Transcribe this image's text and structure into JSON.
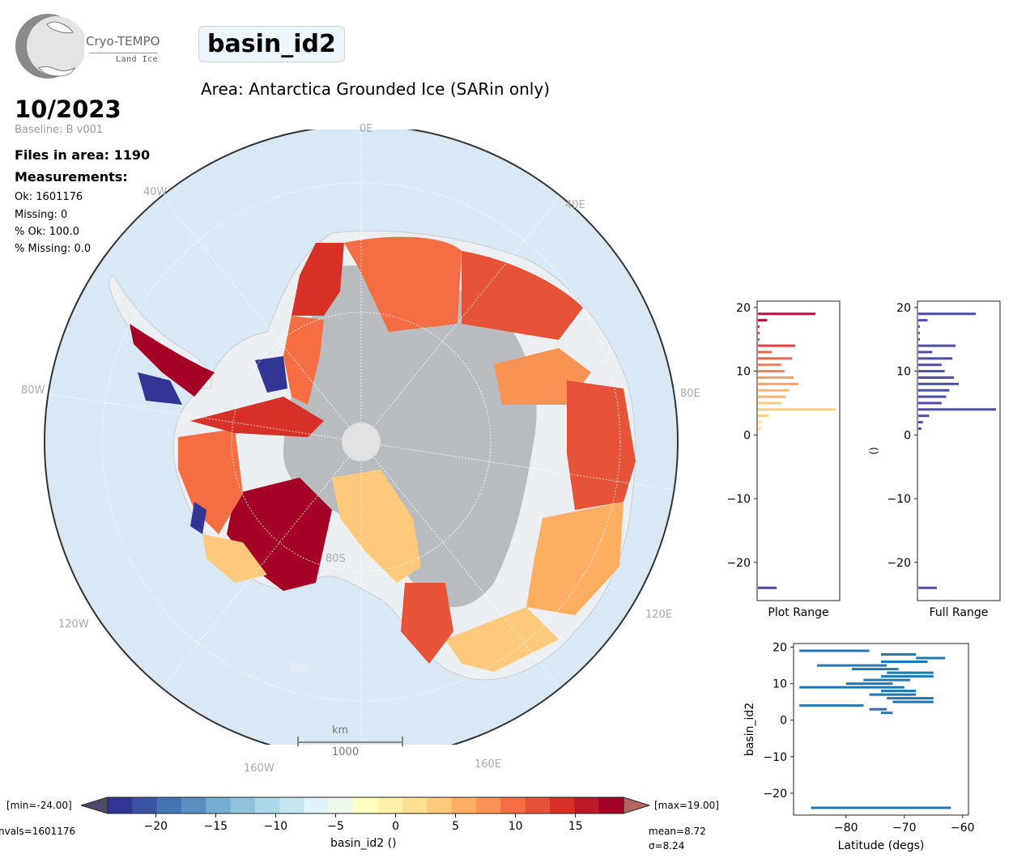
{
  "header": {
    "logo_name": "Cryo-TEMPO",
    "logo_sub": "Land Ice",
    "variable": "basin_id2",
    "area": "Area: Antarctica Grounded Ice (SARin only)",
    "date": "10/2023",
    "baseline": "Baseline: B v001"
  },
  "stats": {
    "files": "Files in area: 1190",
    "measurements_title": "Measurements:",
    "ok": "Ok: 1601176",
    "missing": "Missing: 0",
    "pct_ok": "% Ok: 100.0",
    "pct_missing": "% Missing: 0.0"
  },
  "map": {
    "lon_labels": [
      "0E",
      "40E",
      "80E",
      "120E",
      "160E",
      "160W",
      "120W",
      "80W",
      "40W"
    ],
    "lat_labels": [
      "80S",
      "70S"
    ],
    "scale_unit": "km",
    "scale_value": "1000"
  },
  "colorbar": {
    "min_label": "[min=-24.00]",
    "max_label": "[max=19.00]",
    "nvals": "nvals=1601176",
    "mean": "mean=8.72",
    "sigma": "σ=8.24",
    "label": "basin_id2 ()",
    "ticks": [
      "−20",
      "−15",
      "−10",
      "−5",
      "0",
      "5",
      "10",
      "15"
    ],
    "colors": [
      "#313695",
      "#3a53a4",
      "#4575b4",
      "#5b8fc2",
      "#74add1",
      "#91c2dc",
      "#abd9e9",
      "#c6e6ef",
      "#e0f3f8",
      "#eef8ea",
      "#ffffbf",
      "#fff1a8",
      "#fee090",
      "#fdc97a",
      "#fdae61",
      "#f99354",
      "#f46d43",
      "#e65339",
      "#d73027",
      "#bd1a29",
      "#a50026"
    ]
  },
  "chart_data": [
    {
      "type": "bar",
      "orientation": "horizontal",
      "title": "Plot Range",
      "xlabel": "Plot Range",
      "ylabel": "",
      "ylim": [
        -26,
        21
      ],
      "yticks": [
        "20",
        "10",
        "0",
        "−10",
        "−20"
      ],
      "categories": [
        -24,
        1,
        2,
        3,
        4,
        5,
        6,
        7,
        8,
        9,
        10,
        11,
        12,
        13,
        14,
        15,
        16,
        17,
        18,
        19
      ],
      "values": [
        0.24,
        0.04,
        0.06,
        0.14,
        1.0,
        0.3,
        0.36,
        0.4,
        0.52,
        0.46,
        0.34,
        0.3,
        0.44,
        0.18,
        0.48,
        0.02,
        0.02,
        0.02,
        0.12,
        0.74
      ]
    },
    {
      "type": "bar",
      "orientation": "horizontal",
      "title": "Full Range",
      "xlabel": "Full Range",
      "ylabel": "()",
      "ylim": [
        -26,
        21
      ],
      "yticks": [
        "20",
        "10",
        "0",
        "−10",
        "−20"
      ],
      "categories": [
        -24,
        1,
        2,
        3,
        4,
        5,
        6,
        7,
        8,
        9,
        10,
        11,
        12,
        13,
        14,
        15,
        16,
        17,
        18,
        19
      ],
      "values": [
        0.24,
        0.04,
        0.06,
        0.14,
        1.0,
        0.3,
        0.36,
        0.4,
        0.52,
        0.46,
        0.34,
        0.3,
        0.44,
        0.18,
        0.48,
        0.02,
        0.02,
        0.02,
        0.12,
        0.74
      ],
      "color": "#3b3b9c"
    },
    {
      "type": "line",
      "title": "",
      "xlabel": "Latitude (degs)",
      "ylabel": "basin_id2",
      "xlim": [
        -89,
        -59
      ],
      "ylim": [
        -26,
        21
      ],
      "xticks": [
        "−80",
        "−70",
        "−60"
      ],
      "yticks": [
        "20",
        "10",
        "0",
        "−10",
        "−20"
      ],
      "series": [
        {
          "y": 19,
          "x": [
            -88,
            -76
          ]
        },
        {
          "y": 18,
          "x": [
            -74,
            -68
          ]
        },
        {
          "y": 17,
          "x": [
            -68,
            -63
          ]
        },
        {
          "y": 16,
          "x": [
            -74,
            -66
          ]
        },
        {
          "y": 15,
          "x": [
            -85,
            -73
          ]
        },
        {
          "y": 14,
          "x": [
            -79,
            -71
          ]
        },
        {
          "y": 13,
          "x": [
            -73,
            -65
          ]
        },
        {
          "y": 12,
          "x": [
            -74,
            -65
          ]
        },
        {
          "y": 11,
          "x": [
            -77,
            -69
          ]
        },
        {
          "y": 10,
          "x": [
            -80,
            -72
          ]
        },
        {
          "y": 9,
          "x": [
            -88,
            -70
          ]
        },
        {
          "y": 8,
          "x": [
            -74,
            -68
          ]
        },
        {
          "y": 7,
          "x": [
            -76,
            -68
          ]
        },
        {
          "y": 6,
          "x": [
            -73,
            -65
          ]
        },
        {
          "y": 5,
          "x": [
            -72,
            -65
          ]
        },
        {
          "y": 4,
          "x": [
            -88,
            -77
          ]
        },
        {
          "y": 3,
          "x": [
            -76,
            -73
          ]
        },
        {
          "y": 2,
          "x": [
            -74,
            -72
          ]
        },
        {
          "y": -24,
          "x": [
            -86,
            -62
          ]
        }
      ]
    }
  ]
}
